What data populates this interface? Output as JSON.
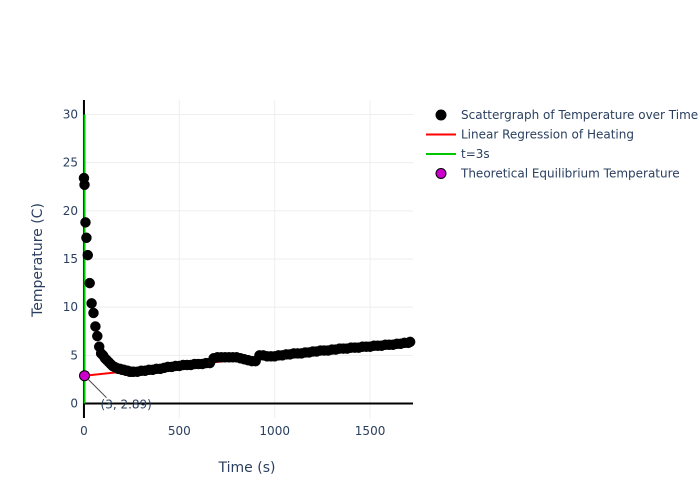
{
  "chart_data": {
    "type": "scatter",
    "title": "",
    "xlabel": "Time (s)",
    "ylabel": "Temperature (C)",
    "xlim": [
      -5,
      1725
    ],
    "ylim": [
      -1.5,
      31.5
    ],
    "x_ticks": [
      0,
      500,
      1000,
      1500
    ],
    "y_ticks": [
      0,
      5,
      10,
      15,
      20,
      25,
      30
    ],
    "grid": true,
    "legend_position": "right",
    "series": [
      {
        "name": "Scattergraph of Temperature over Time",
        "kind": "markers",
        "color": "#000000",
        "x": [
          0,
          3,
          8,
          13,
          20,
          30,
          40,
          50,
          60,
          70,
          80,
          90,
          100,
          110,
          120,
          130,
          140,
          150,
          160,
          170,
          180,
          190,
          200,
          210,
          220,
          230,
          240,
          250,
          260,
          280,
          300,
          320,
          340,
          360,
          380,
          400,
          420,
          440,
          460,
          480,
          500,
          520,
          540,
          560,
          580,
          600,
          620,
          640,
          660,
          680,
          700,
          720,
          740,
          760,
          780,
          800,
          820,
          840,
          860,
          880,
          900,
          920,
          940,
          960,
          980,
          1000,
          1020,
          1040,
          1060,
          1080,
          1100,
          1120,
          1140,
          1160,
          1180,
          1200,
          1220,
          1240,
          1260,
          1280,
          1300,
          1320,
          1340,
          1360,
          1380,
          1400,
          1420,
          1440,
          1460,
          1480,
          1500,
          1520,
          1540,
          1560,
          1580,
          1600,
          1620,
          1640,
          1660,
          1680,
          1700,
          1710
        ],
        "y": [
          23.4,
          22.7,
          18.8,
          17.2,
          15.4,
          12.5,
          10.4,
          9.4,
          8.0,
          7.0,
          5.9,
          5.2,
          5.0,
          4.7,
          4.5,
          4.3,
          4.1,
          3.9,
          3.8,
          3.7,
          3.6,
          3.6,
          3.5,
          3.5,
          3.4,
          3.4,
          3.3,
          3.3,
          3.3,
          3.3,
          3.4,
          3.4,
          3.5,
          3.5,
          3.6,
          3.6,
          3.7,
          3.8,
          3.8,
          3.9,
          3.9,
          4.0,
          4.0,
          4.0,
          4.1,
          4.1,
          4.1,
          4.2,
          4.2,
          4.7,
          4.8,
          4.8,
          4.8,
          4.8,
          4.8,
          4.8,
          4.7,
          4.6,
          4.5,
          4.4,
          4.4,
          5.0,
          5.0,
          4.9,
          4.9,
          4.9,
          5.0,
          5.0,
          5.1,
          5.1,
          5.2,
          5.2,
          5.2,
          5.3,
          5.3,
          5.4,
          5.4,
          5.5,
          5.5,
          5.5,
          5.6,
          5.6,
          5.7,
          5.7,
          5.7,
          5.8,
          5.8,
          5.8,
          5.9,
          5.9,
          5.9,
          6.0,
          6.0,
          6.0,
          6.1,
          6.1,
          6.1,
          6.2,
          6.2,
          6.3,
          6.3,
          6.4
        ]
      },
      {
        "name": "Linear Regression of Heating",
        "kind": "line",
        "color": "#ff0000",
        "x": [
          3,
          1710
        ],
        "y": [
          2.89,
          6.4
        ]
      },
      {
        "name": "t=3s",
        "kind": "line",
        "color": "#00c800",
        "x": [
          3,
          3
        ],
        "y": [
          0,
          30
        ]
      },
      {
        "name": "Theoretical Equilibrium Temperature",
        "kind": "markers",
        "color": "#cc00cc",
        "x": [
          3
        ],
        "y": [
          2.89
        ]
      }
    ],
    "annotations": [
      {
        "text": "(3, 2.89)",
        "x": 3,
        "y": 2.89
      }
    ]
  }
}
